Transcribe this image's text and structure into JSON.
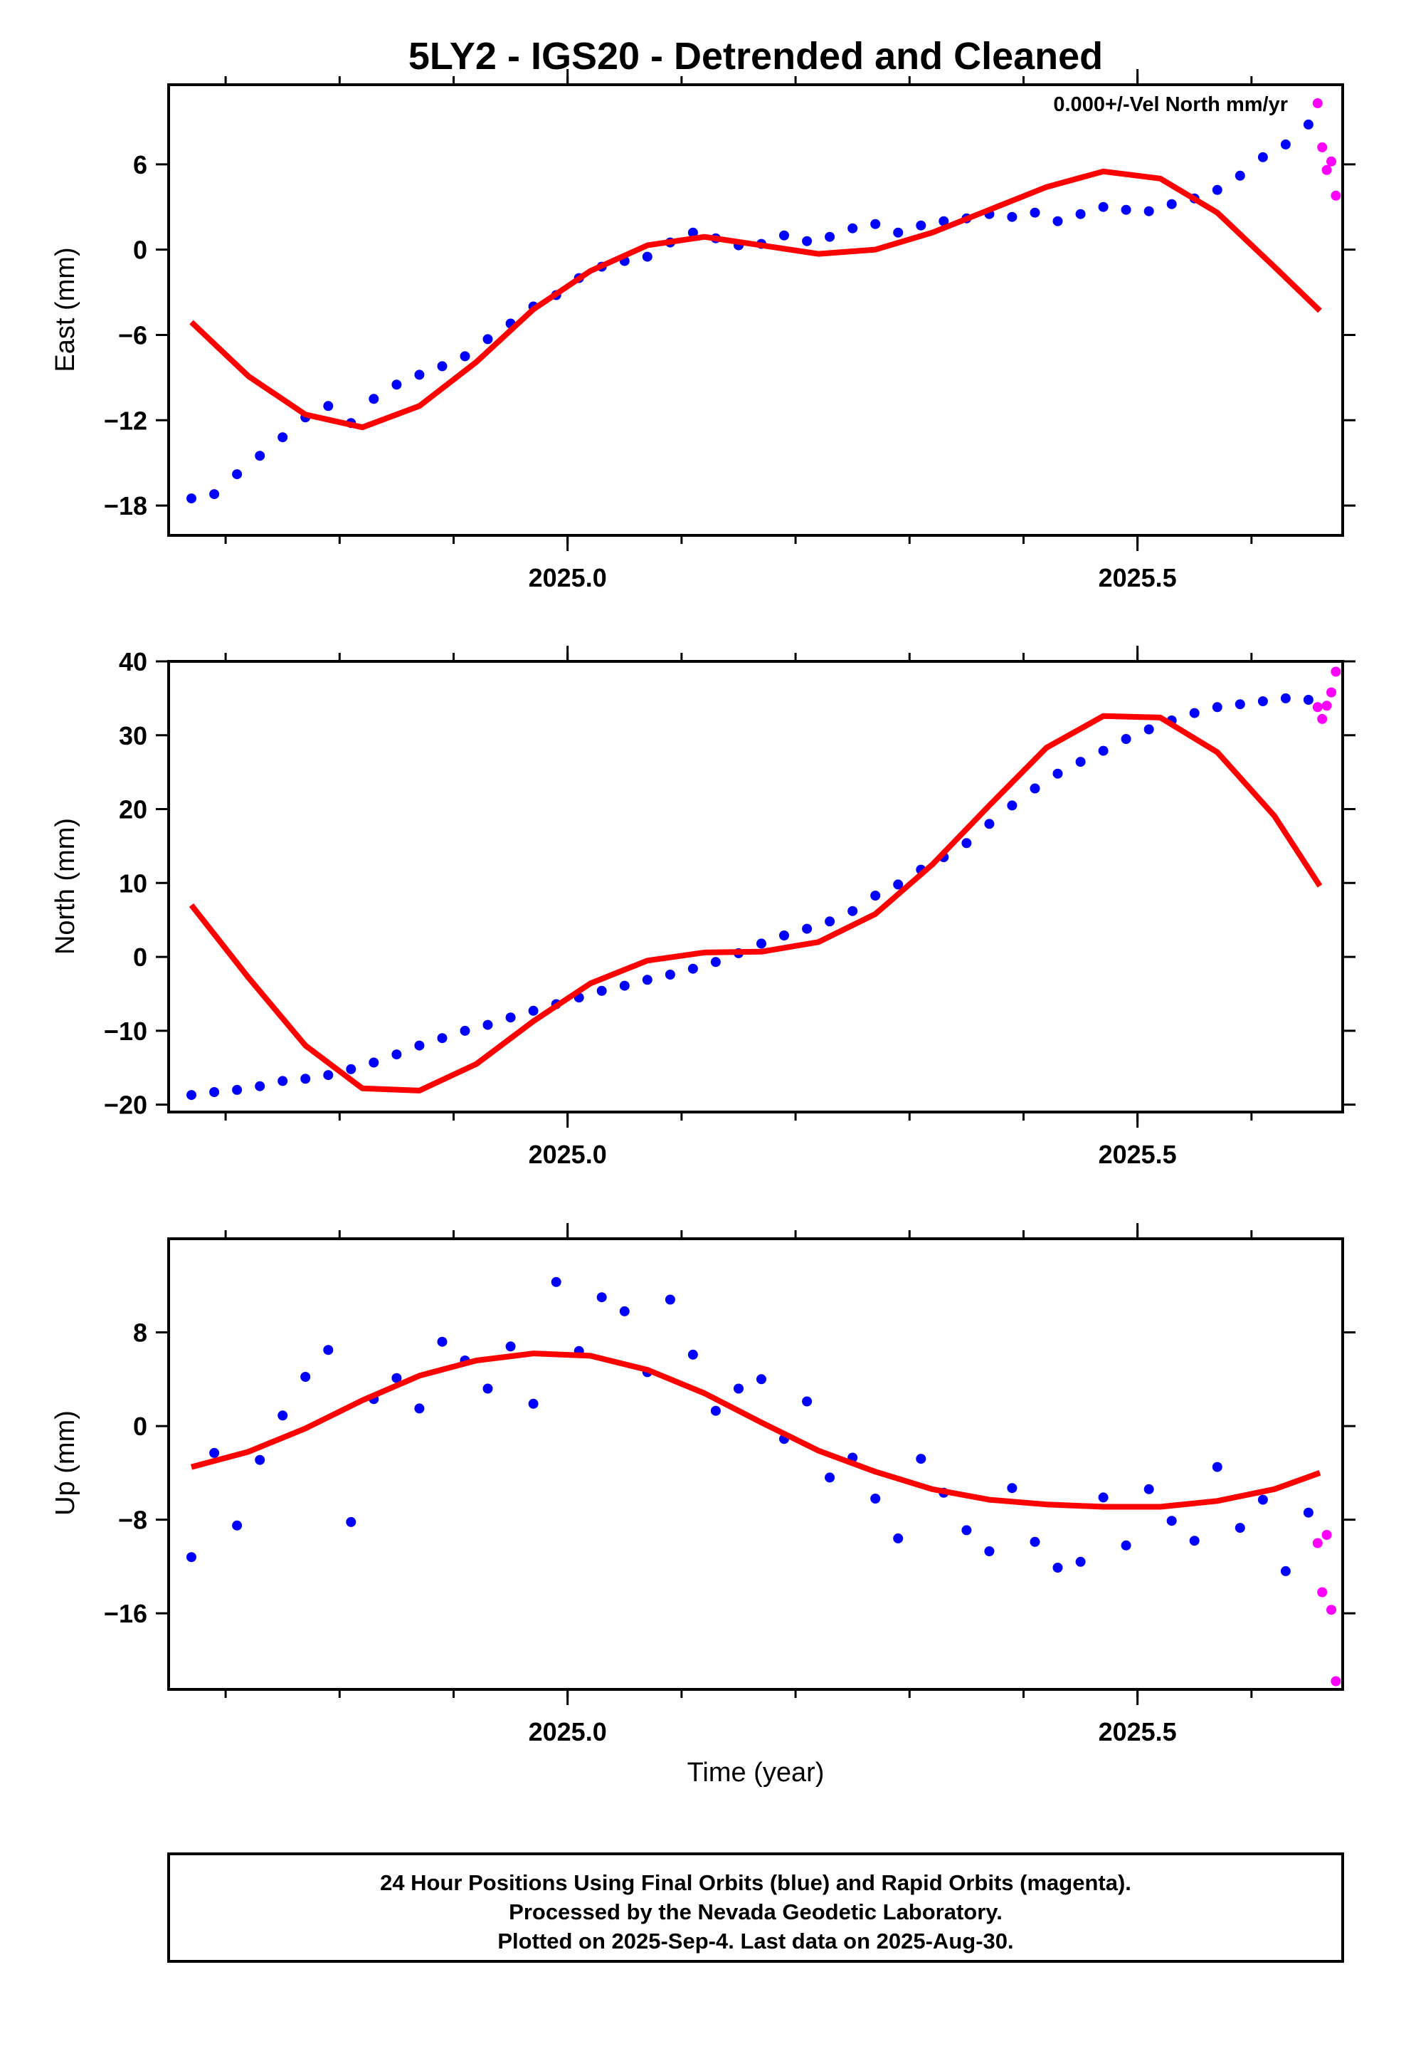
{
  "figure": {
    "title": "5LY2 - IGS20 - Detrended and Cleaned",
    "annotation": "0.000+/-Vel North mm/yr",
    "footer": [
      "24 Hour Positions Using Final Orbits (blue) and Rapid Orbits (magenta).",
      "Processed by the Nevada Geodetic Laboratory.",
      "Plotted on 2025-Sep-4. Last data on 2025-Aug-30."
    ]
  },
  "colors": {
    "final_orbits": "#0000ff",
    "rapid_orbits": "#ff00ff",
    "model_fit": "#ff0000",
    "frame": "#000000"
  },
  "chart_data": [
    {
      "type": "scatter",
      "title": "5LY2 - IGS20 - Detrended and Cleaned",
      "ylabel": "East (mm)",
      "xlabel": "",
      "xlim": [
        2024.65,
        2025.68
      ],
      "ylim": [
        -20.1,
        11.6
      ],
      "xticks": [
        2025.0,
        2025.5
      ],
      "xtick_labels": [
        "2025.0",
        "2025.5"
      ],
      "yticks": [
        6,
        0,
        -6,
        -12,
        -18
      ],
      "ytick_labels": [
        "6",
        "0",
        "−6",
        "−12",
        "−18"
      ],
      "grid": false,
      "series": [
        {
          "name": "Final Orbits (blue)",
          "color": "#0000ff",
          "x": [
            2024.67,
            2024.69,
            2024.71,
            2024.73,
            2024.75,
            2024.77,
            2024.79,
            2024.81,
            2024.83,
            2024.85,
            2024.87,
            2024.89,
            2024.91,
            2024.93,
            2024.95,
            2024.97,
            2024.99,
            2025.01,
            2025.03,
            2025.05,
            2025.07,
            2025.09,
            2025.11,
            2025.13,
            2025.15,
            2025.17,
            2025.19,
            2025.21,
            2025.23,
            2025.25,
            2025.27,
            2025.29,
            2025.31,
            2025.33,
            2025.35,
            2025.37,
            2025.39,
            2025.41,
            2025.43,
            2025.45,
            2025.47,
            2025.49,
            2025.51,
            2025.53,
            2025.55,
            2025.57,
            2025.59,
            2025.61,
            2025.63,
            2025.65
          ],
          "y": [
            -17.5,
            -17.2,
            -15.8,
            -14.5,
            -13.2,
            -11.8,
            -11.0,
            -12.2,
            -10.5,
            -9.5,
            -8.8,
            -8.2,
            -7.5,
            -6.3,
            -5.2,
            -4.0,
            -3.2,
            -2.0,
            -1.2,
            -0.8,
            -0.5,
            0.5,
            1.2,
            0.8,
            0.3,
            0.4,
            1.0,
            0.6,
            0.9,
            1.5,
            1.8,
            1.2,
            1.7,
            2.0,
            2.2,
            2.5,
            2.3,
            2.6,
            2.0,
            2.5,
            3.0,
            2.8,
            2.7,
            3.2,
            3.6,
            4.2,
            5.2,
            6.5,
            7.4,
            8.8
          ]
        },
        {
          "name": "Rapid Orbits (magenta)",
          "color": "#ff00ff",
          "x": [
            2025.658,
            2025.662,
            2025.666,
            2025.67,
            2025.674
          ],
          "y": [
            10.3,
            7.2,
            5.6,
            6.2,
            3.8
          ]
        },
        {
          "name": "Model fit",
          "color": "#ff0000",
          "x": [
            2024.67,
            2024.72,
            2024.77,
            2024.82,
            2024.87,
            2024.92,
            2024.97,
            2025.02,
            2025.07,
            2025.12,
            2025.17,
            2025.22,
            2025.27,
            2025.32,
            2025.37,
            2025.42,
            2025.47,
            2025.52,
            2025.57,
            2025.62,
            2025.66
          ],
          "y": [
            -5.1,
            -8.9,
            -11.6,
            -12.5,
            -11.0,
            -7.9,
            -4.2,
            -1.5,
            0.3,
            0.9,
            0.3,
            -0.3,
            0.0,
            1.2,
            2.8,
            4.4,
            5.5,
            5.0,
            2.6,
            -1.2,
            -4.3
          ]
        }
      ]
    },
    {
      "type": "scatter",
      "ylabel": "North (mm)",
      "xlabel": "",
      "xlim": [
        2024.65,
        2025.68
      ],
      "ylim": [
        -21.0,
        40.0
      ],
      "xticks": [
        2025.0,
        2025.5
      ],
      "xtick_labels": [
        "2025.0",
        "2025.5"
      ],
      "yticks": [
        40,
        30,
        20,
        10,
        0,
        -10,
        -20
      ],
      "ytick_labels": [
        "40",
        "30",
        "20",
        "10",
        "0",
        "−10",
        "−20"
      ],
      "grid": false,
      "series": [
        {
          "name": "Final Orbits (blue)",
          "color": "#0000ff",
          "x": [
            2024.67,
            2024.69,
            2024.71,
            2024.73,
            2024.75,
            2024.77,
            2024.79,
            2024.81,
            2024.83,
            2024.85,
            2024.87,
            2024.89,
            2024.91,
            2024.93,
            2024.95,
            2024.97,
            2024.99,
            2025.01,
            2025.03,
            2025.05,
            2025.07,
            2025.09,
            2025.11,
            2025.13,
            2025.15,
            2025.17,
            2025.19,
            2025.21,
            2025.23,
            2025.25,
            2025.27,
            2025.29,
            2025.31,
            2025.33,
            2025.35,
            2025.37,
            2025.39,
            2025.41,
            2025.43,
            2025.45,
            2025.47,
            2025.49,
            2025.51,
            2025.53,
            2025.55,
            2025.57,
            2025.59,
            2025.61,
            2025.63,
            2025.65
          ],
          "y": [
            -18.7,
            -18.3,
            -18.0,
            -17.5,
            -16.8,
            -16.5,
            -16.0,
            -15.2,
            -14.3,
            -13.2,
            -12.0,
            -11.0,
            -10.0,
            -9.2,
            -8.2,
            -7.3,
            -6.4,
            -5.5,
            -4.6,
            -3.9,
            -3.1,
            -2.4,
            -1.6,
            -0.7,
            0.5,
            1.8,
            2.9,
            3.8,
            4.8,
            6.2,
            8.3,
            9.8,
            11.8,
            13.5,
            15.4,
            18.0,
            20.5,
            22.8,
            24.8,
            26.4,
            27.9,
            29.5,
            30.8,
            32.0,
            33.0,
            33.8,
            34.2,
            34.6,
            35.0,
            34.8
          ]
        },
        {
          "name": "Rapid Orbits (magenta)",
          "color": "#ff00ff",
          "x": [
            2025.658,
            2025.662,
            2025.666,
            2025.67,
            2025.674
          ],
          "y": [
            33.8,
            32.2,
            34.0,
            35.8,
            38.6
          ]
        },
        {
          "name": "Model fit",
          "color": "#ff0000",
          "x": [
            2024.67,
            2024.72,
            2024.77,
            2024.82,
            2024.87,
            2024.92,
            2024.97,
            2025.02,
            2025.07,
            2025.12,
            2025.17,
            2025.22,
            2025.27,
            2025.32,
            2025.37,
            2025.42,
            2025.47,
            2025.52,
            2025.57,
            2025.62,
            2025.66
          ],
          "y": [
            7.0,
            -2.8,
            -12.0,
            -17.8,
            -18.1,
            -14.5,
            -8.7,
            -3.6,
            -0.5,
            0.6,
            0.7,
            2.0,
            5.8,
            12.5,
            20.5,
            28.3,
            32.6,
            32.4,
            27.7,
            19.1,
            9.6
          ]
        }
      ]
    },
    {
      "type": "scatter",
      "ylabel": "Up (mm)",
      "xlabel": "Time (year)",
      "xlim": [
        2024.65,
        2025.68
      ],
      "ylim": [
        -22.5,
        16.0
      ],
      "xticks": [
        2025.0,
        2025.5
      ],
      "xtick_labels": [
        "2025.0",
        "2025.5"
      ],
      "yticks": [
        8,
        0,
        -8,
        -16
      ],
      "ytick_labels": [
        "8",
        "0",
        "−8",
        "−16"
      ],
      "grid": false,
      "series": [
        {
          "name": "Final Orbits (blue)",
          "color": "#0000ff",
          "x": [
            2024.67,
            2024.69,
            2024.71,
            2024.73,
            2024.75,
            2024.77,
            2024.79,
            2024.81,
            2024.83,
            2024.85,
            2024.87,
            2024.89,
            2024.91,
            2024.93,
            2024.95,
            2024.97,
            2024.99,
            2025.01,
            2025.03,
            2025.05,
            2025.07,
            2025.09,
            2025.11,
            2025.13,
            2025.15,
            2025.17,
            2025.19,
            2025.21,
            2025.23,
            2025.25,
            2025.27,
            2025.29,
            2025.31,
            2025.33,
            2025.35,
            2025.37,
            2025.39,
            2025.41,
            2025.43,
            2025.45,
            2025.47,
            2025.49,
            2025.51,
            2025.53,
            2025.55,
            2025.57,
            2025.59,
            2025.61,
            2025.63,
            2025.65
          ],
          "y": [
            -11.2,
            -2.3,
            -8.5,
            -2.9,
            0.9,
            4.2,
            6.5,
            -8.2,
            2.3,
            4.1,
            1.5,
            7.2,
            5.6,
            3.2,
            6.8,
            1.9,
            12.3,
            6.4,
            11.0,
            9.8,
            4.6,
            10.8,
            6.1,
            1.3,
            3.2,
            4.0,
            -1.1,
            2.1,
            -4.4,
            -2.7,
            -6.2,
            -9.6,
            -2.8,
            -5.7,
            -8.9,
            -10.7,
            -5.3,
            -9.9,
            -12.1,
            -11.6,
            -6.1,
            -10.2,
            -5.4,
            -8.1,
            -9.8,
            -3.5,
            -8.7,
            -6.3,
            -12.4,
            -7.4
          ]
        },
        {
          "name": "Rapid Orbits (magenta)",
          "color": "#ff00ff",
          "x": [
            2025.658,
            2025.662,
            2025.666,
            2025.67,
            2025.674
          ],
          "y": [
            -10.0,
            -14.2,
            -9.3,
            -15.7,
            -21.8
          ]
        },
        {
          "name": "Model fit",
          "color": "#ff0000",
          "x": [
            2024.67,
            2024.72,
            2024.77,
            2024.82,
            2024.87,
            2024.92,
            2024.97,
            2025.02,
            2025.07,
            2025.12,
            2025.17,
            2025.22,
            2025.27,
            2025.32,
            2025.37,
            2025.42,
            2025.47,
            2025.52,
            2025.57,
            2025.62,
            2025.66
          ],
          "y": [
            -3.5,
            -2.2,
            -0.2,
            2.2,
            4.3,
            5.6,
            6.2,
            6.0,
            4.8,
            2.8,
            0.3,
            -2.1,
            -3.9,
            -5.4,
            -6.3,
            -6.7,
            -6.9,
            -6.9,
            -6.4,
            -5.4,
            -4.0
          ]
        }
      ]
    }
  ]
}
